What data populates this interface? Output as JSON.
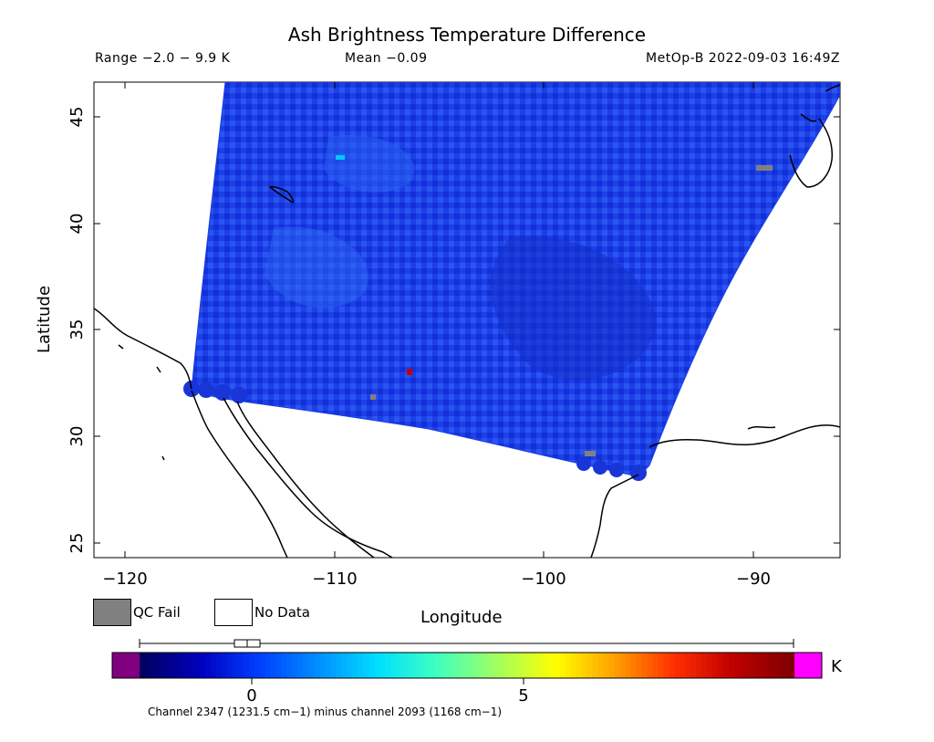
{
  "title": "Ash Brightness Temperature Difference",
  "range_text": "Range −2.0 − 9.9 K",
  "mean_text": "Mean −0.09",
  "satellite_text": "MetOp-B 2022-09-03 16:49Z",
  "axes": {
    "xlabel": "Longitude",
    "ylabel": "Latitude",
    "xticks": [
      "−120",
      "−110",
      "−100",
      "−90"
    ],
    "yticks": [
      "25",
      "30",
      "35",
      "40",
      "45"
    ]
  },
  "legend": {
    "qc_fail": "QC Fail",
    "no_data": "No Data",
    "qc_color": "#808080"
  },
  "colorbar": {
    "min": -2.0,
    "max": 9.9,
    "ticks": [
      "0",
      "5"
    ],
    "unit": "K",
    "low_color": "#800080",
    "high_color": "#ff00ff",
    "colors": [
      "#000060",
      "#0000c0",
      "#0040ff",
      "#0090ff",
      "#00e0ff",
      "#40ffc0",
      "#a0ff60",
      "#ffff00",
      "#ffa000",
      "#ff3000",
      "#c00000",
      "#800000"
    ]
  },
  "footnote": "Channel 2347 (1231.5 cm−1) minus channel 2093 (1168 cm−1)",
  "swath_color": "#1a3ee6"
}
